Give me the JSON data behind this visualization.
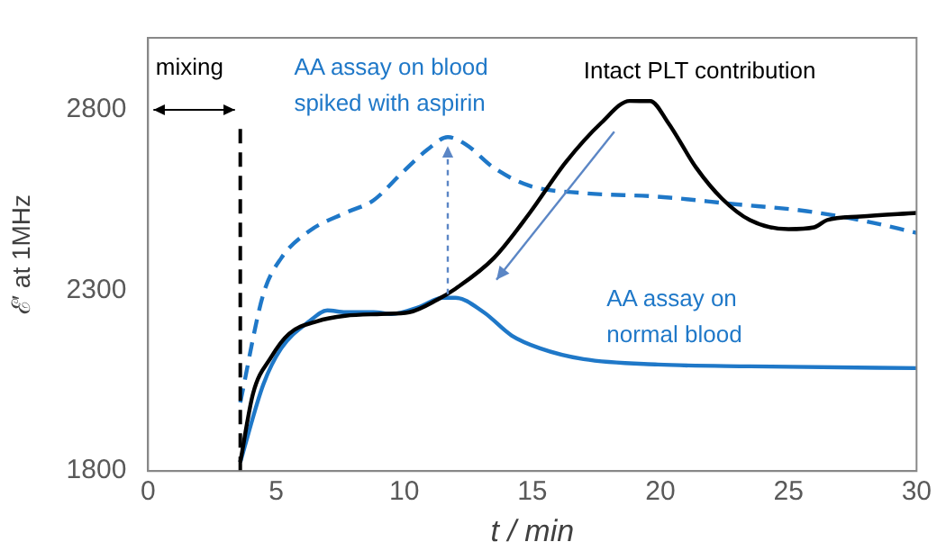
{
  "chart_data": {
    "type": "line",
    "xlabel": "t / min",
    "ylabel": "ℰ′ at 1MHz",
    "xlim": [
      0,
      30
    ],
    "xticks": [
      0,
      5,
      10,
      15,
      20,
      25,
      30
    ],
    "ylim": [
      1800,
      3000
    ],
    "yticks": [
      1800,
      2300,
      2800
    ],
    "grid": false,
    "legend": false,
    "marker": "none",
    "series": [
      {
        "color": "#000000",
        "line_style": "solid",
        "x": [
          3.6,
          4.1,
          4.8,
          5.5,
          6.6,
          7.7,
          9.1,
          10.2,
          11.3,
          12,
          13.5,
          14.9,
          16.3,
          17.7,
          18.8,
          19.6,
          20.3,
          21.4,
          22.4,
          23.5,
          25,
          26,
          26.5,
          27.8,
          30
        ],
        "values": [
          1825,
          2015,
          2115,
          2180,
          2215,
          2230,
          2235,
          2240,
          2275,
          2305,
          2390,
          2515,
          2655,
          2765,
          2825,
          2825,
          2765,
          2640,
          2555,
          2495,
          2470,
          2475,
          2495,
          2505,
          2515
        ]
      },
      {
        "name": "AA assay on blood spiked with aspirin",
        "color": "#1f78c8",
        "line_style": "dashed",
        "x": [
          3.6,
          4.5,
          5.2,
          6.3,
          7.7,
          8.8,
          9.9,
          10.9,
          11.7,
          12.4,
          13.5,
          14.9,
          17,
          19.9,
          22.8,
          25.7,
          27.8,
          30
        ],
        "values": [
          1990,
          2290,
          2390,
          2465,
          2515,
          2550,
          2625,
          2690,
          2725,
          2705,
          2640,
          2590,
          2570,
          2560,
          2540,
          2520,
          2495,
          2460
        ]
      },
      {
        "name": "AA assay on normal blood",
        "color": "#1f78c8",
        "line_style": "solid",
        "x": [
          3.6,
          4.5,
          5.2,
          6.3,
          7,
          7.7,
          8.8,
          9.5,
          10.6,
          11.5,
          12,
          13.1,
          14.2,
          15.3,
          17,
          19.9,
          23.5,
          30
        ],
        "values": [
          1825,
          2040,
          2140,
          2215,
          2245,
          2240,
          2240,
          2235,
          2255,
          2280,
          2280,
          2240,
          2175,
          2140,
          2110,
          2095,
          2090,
          2085
        ]
      }
    ],
    "ref_lines": [
      {
        "axis": "x",
        "value": 3.6,
        "color": "#000000",
        "line_style": "dashed"
      }
    ],
    "annotations": [
      "mixing",
      "Intact PLT contribution"
    ]
  }
}
